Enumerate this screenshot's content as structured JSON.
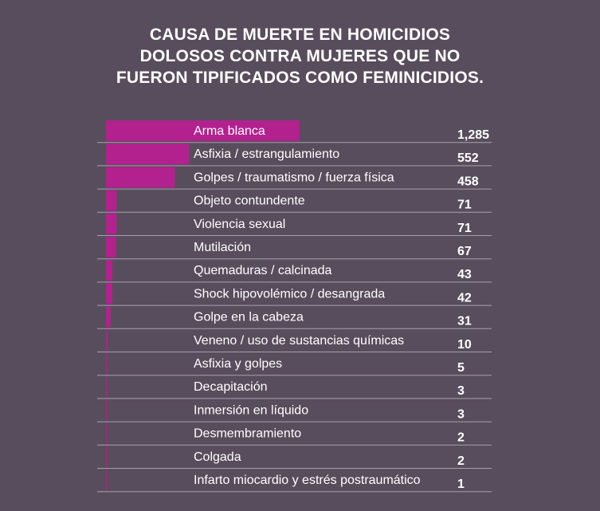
{
  "colors": {
    "background": "#584d5c",
    "bar": "#b3218f",
    "rule": "#a79fab",
    "text": "#ffffff"
  },
  "chart_data": {
    "type": "bar",
    "orientation": "horizontal",
    "title_lines": [
      "CAUSA DE MUERTE EN HOMICIDIOS",
      "DOLOSOS CONTRA MUJERES QUE NO",
      "FUERON TIPIFICADOS COMO FEMINICIDIOS."
    ],
    "categories": [
      "Arma blanca",
      "Asfixia / estrangulamiento",
      "Golpes / traumatismo / fuerza física",
      "Objeto contundente",
      "Violencia sexual",
      "Mutilación",
      "Quemaduras / calcinada",
      "Shock hipovolémico / desangrada",
      "Golpe en la cabeza",
      "Veneno / uso de sustancias químicas",
      "Asfixia y golpes",
      "Decapitación",
      "Inmersión en líquido",
      "Desmembramiento",
      "Colgada",
      "Infarto miocardio y estrés postraumático"
    ],
    "values": [
      1285,
      552,
      458,
      71,
      71,
      67,
      43,
      42,
      31,
      10,
      5,
      3,
      3,
      2,
      2,
      1
    ],
    "value_labels": [
      "1,285",
      "552",
      "458",
      "71",
      "71",
      "67",
      "43",
      "42",
      "31",
      "10",
      "5",
      "3",
      "3",
      "2",
      "2",
      "1"
    ],
    "xlim": [
      0,
      1285
    ],
    "grid": false
  }
}
